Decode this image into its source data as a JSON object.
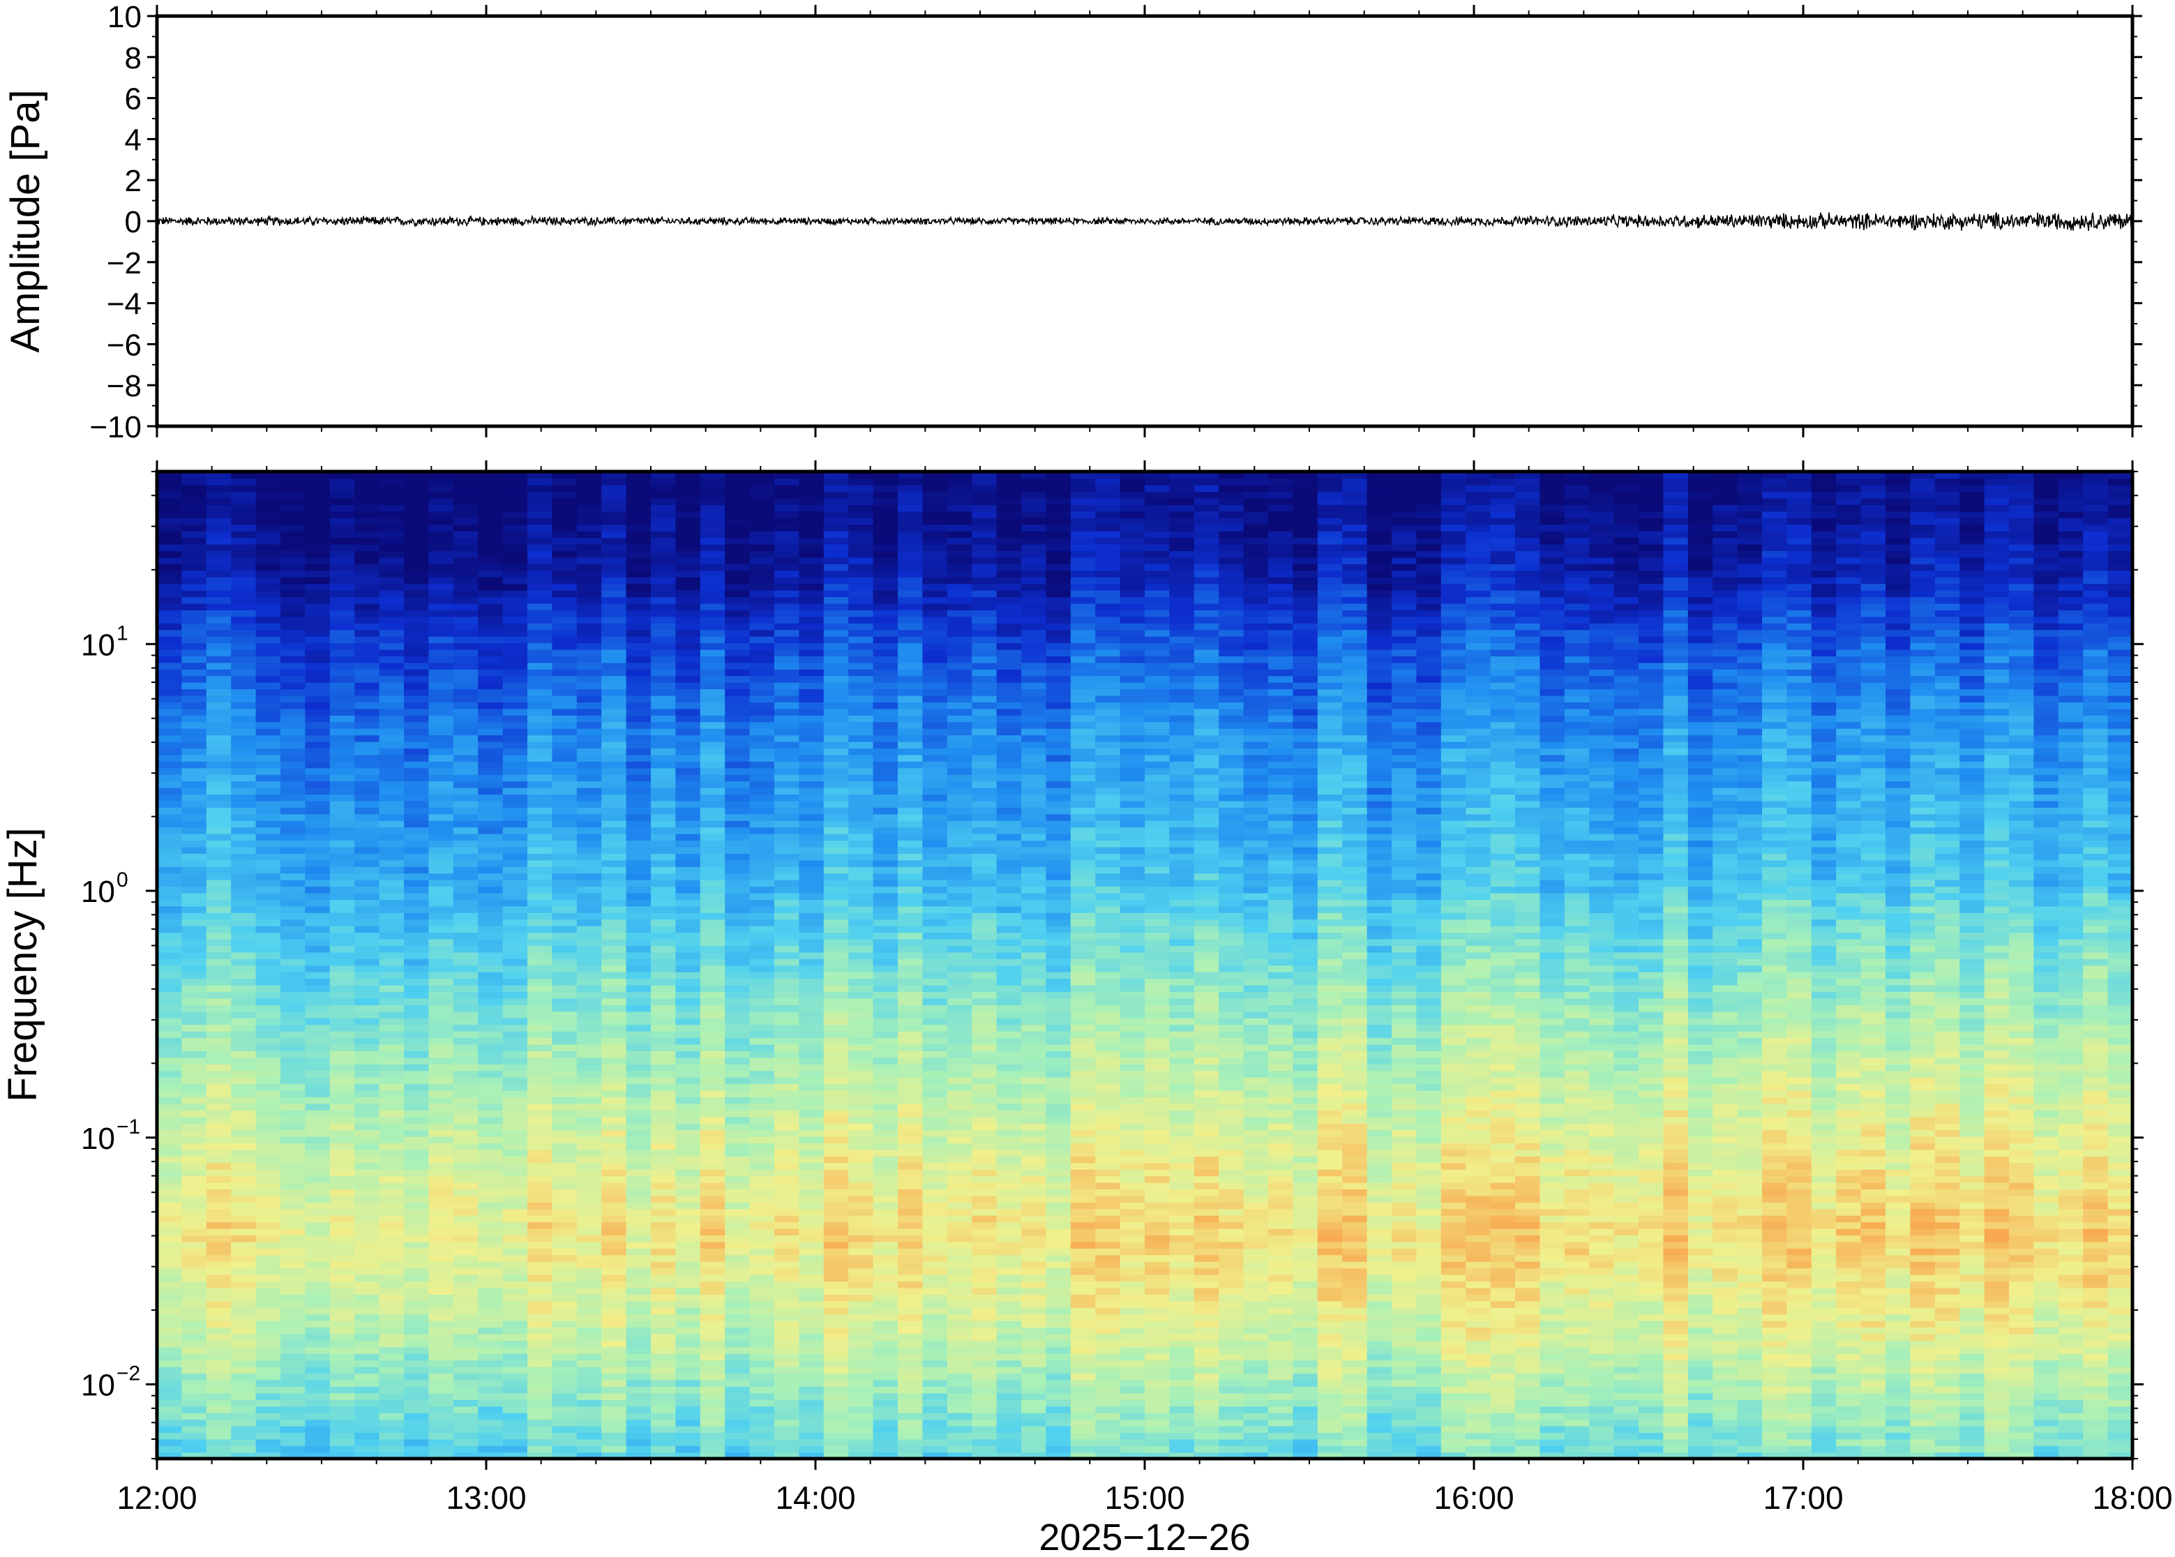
{
  "chart_data": [
    {
      "type": "line",
      "ylabel": "Amplitude [Pa]",
      "ylim": [
        -10,
        10
      ],
      "yticks": [
        "10",
        "8",
        "6",
        "4",
        "2",
        "0",
        "−2",
        "−4",
        "−6",
        "−8",
        "−10"
      ],
      "series": [
        {
          "x": [
            "12:00",
            "13:00",
            "14:00",
            "15:00",
            "16:00",
            "17:00",
            "18:00"
          ],
          "values": [
            0.0,
            0.0,
            0.0,
            0.0,
            0.0,
            0.0,
            0.0
          ],
          "envelope": [
            0.2,
            0.2,
            0.15,
            0.15,
            0.2,
            0.35,
            0.4
          ]
        }
      ],
      "grid": false
    },
    {
      "type": "heatmap",
      "ylabel": "Frequency [Hz]",
      "xlabel": "2025−12−26",
      "yscale": "log",
      "ylim": [
        0.005,
        50
      ],
      "ytick_labels": [
        {
          "base": "10",
          "exp": "1",
          "value": 10
        },
        {
          "base": "10",
          "exp": "0",
          "value": 1
        },
        {
          "base": "10",
          "exp": "−1",
          "value": 0.1
        },
        {
          "base": "10",
          "exp": "−2",
          "value": 0.01
        }
      ],
      "xtick_labels": [
        "12:00",
        "13:00",
        "14:00",
        "15:00",
        "16:00",
        "17:00",
        "18:00"
      ],
      "colormap": [
        "#0a0a78",
        "#0d2fd0",
        "#1f8cf0",
        "#4fd0f0",
        "#a8f0b8",
        "#f0f08c",
        "#f8a850"
      ],
      "intensity_profile": [
        {
          "freq": 50,
          "level": 0.0
        },
        {
          "freq": 20,
          "level": 0.08
        },
        {
          "freq": 10,
          "level": 0.22
        },
        {
          "freq": 4,
          "level": 0.34
        },
        {
          "freq": 1,
          "level": 0.45
        },
        {
          "freq": 0.3,
          "level": 0.62
        },
        {
          "freq": 0.1,
          "level": 0.75
        },
        {
          "freq": 0.04,
          "level": 0.85
        },
        {
          "freq": 0.015,
          "level": 0.72
        },
        {
          "freq": 0.005,
          "level": 0.52
        }
      ],
      "grid": false
    }
  ]
}
